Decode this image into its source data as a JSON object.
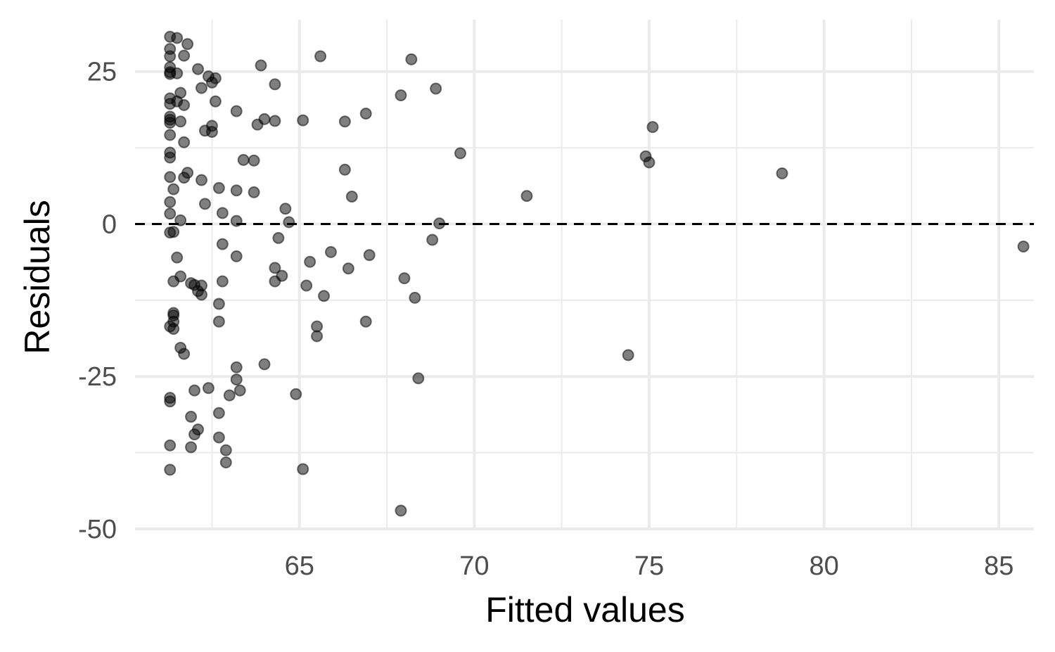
{
  "chart_data": {
    "type": "scatter",
    "title": "",
    "xlabel": "Fitted values",
    "ylabel": "Residuals",
    "xlim": [
      60.3,
      86.0
    ],
    "ylim": [
      -50.0,
      33.5
    ],
    "x_ticks": [
      65,
      70,
      75,
      80,
      85
    ],
    "x_tick_labels": [
      "65",
      "70",
      "75",
      "80",
      "85"
    ],
    "y_ticks": [
      -50,
      -25,
      0,
      25
    ],
    "y_tick_labels": [
      "-50",
      "-25",
      "0",
      "25"
    ],
    "grid": true,
    "reference_line": {
      "y": 0,
      "style": "dashed",
      "color": "#000000"
    },
    "point_color": "#000000",
    "point_opacity": 0.5,
    "points": [
      [
        61.3,
        30.7
      ],
      [
        61.5,
        30.5
      ],
      [
        61.8,
        29.5
      ],
      [
        61.3,
        28.7
      ],
      [
        61.3,
        27.5
      ],
      [
        61.7,
        27.6
      ],
      [
        61.3,
        25.7
      ],
      [
        61.3,
        24.9
      ],
      [
        61.3,
        24.6
      ],
      [
        61.5,
        24.7
      ],
      [
        62.1,
        25.4
      ],
      [
        62.4,
        24.2
      ],
      [
        62.6,
        23.9
      ],
      [
        62.5,
        23.2
      ],
      [
        61.6,
        21.5
      ],
      [
        62.2,
        22.3
      ],
      [
        61.3,
        20.6
      ],
      [
        61.5,
        20.1
      ],
      [
        61.3,
        19.7
      ],
      [
        61.7,
        19.5
      ],
      [
        62.6,
        20.1
      ],
      [
        61.3,
        17.6
      ],
      [
        61.3,
        17.1
      ],
      [
        61.3,
        16.6
      ],
      [
        61.6,
        16.8
      ],
      [
        62.5,
        16.1
      ],
      [
        62.3,
        15.3
      ],
      [
        62.5,
        15.1
      ],
      [
        61.3,
        14.6
      ],
      [
        61.7,
        13.4
      ],
      [
        61.3,
        11.7
      ],
      [
        61.3,
        10.9
      ],
      [
        61.3,
        7.7
      ],
      [
        61.7,
        7.6
      ],
      [
        61.8,
        8.4
      ],
      [
        62.2,
        7.2
      ],
      [
        61.4,
        5.7
      ],
      [
        62.7,
        5.9
      ],
      [
        61.3,
        3.6
      ],
      [
        62.3,
        3.3
      ],
      [
        61.3,
        1.7
      ],
      [
        62.8,
        1.8
      ],
      [
        61.6,
        0.6
      ],
      [
        61.4,
        -1.3
      ],
      [
        61.3,
        -1.4
      ],
      [
        61.5,
        -5.5
      ],
      [
        62.8,
        -3.3
      ],
      [
        61.4,
        -9.4
      ],
      [
        61.6,
        -8.6
      ],
      [
        61.9,
        -9.7
      ],
      [
        62.0,
        -10.0
      ],
      [
        62.1,
        -11.0
      ],
      [
        62.2,
        -10.1
      ],
      [
        62.2,
        -11.6
      ],
      [
        62.8,
        -9.4
      ],
      [
        62.7,
        -13.1
      ],
      [
        61.4,
        -14.6
      ],
      [
        61.4,
        -15.0
      ],
      [
        61.4,
        -16.0
      ],
      [
        61.3,
        -16.8
      ],
      [
        61.4,
        -17.2
      ],
      [
        62.7,
        -16.0
      ],
      [
        61.6,
        -20.3
      ],
      [
        61.7,
        -21.3
      ],
      [
        62.0,
        -27.3
      ],
      [
        61.3,
        -28.5
      ],
      [
        61.3,
        -29.1
      ],
      [
        62.4,
        -26.9
      ],
      [
        62.7,
        -31.0
      ],
      [
        61.9,
        -31.6
      ],
      [
        62.1,
        -33.7
      ],
      [
        62.0,
        -34.5
      ],
      [
        62.7,
        -35.0
      ],
      [
        61.3,
        -36.3
      ],
      [
        61.9,
        -36.6
      ],
      [
        62.9,
        -37.1
      ],
      [
        62.9,
        -39.1
      ],
      [
        61.3,
        -40.3
      ],
      [
        63.2,
        18.5
      ],
      [
        63.4,
        10.5
      ],
      [
        63.7,
        10.4
      ],
      [
        63.2,
        5.5
      ],
      [
        63.7,
        5.2
      ],
      [
        63.2,
        0.5
      ],
      [
        63.2,
        -5.3
      ],
      [
        63.2,
        -23.5
      ],
      [
        63.2,
        -25.5
      ],
      [
        63.3,
        -27.3
      ],
      [
        63.0,
        -28.1
      ],
      [
        63.9,
        26.0
      ],
      [
        64.3,
        22.9
      ],
      [
        64.0,
        17.2
      ],
      [
        63.8,
        16.3
      ],
      [
        64.3,
        16.9
      ],
      [
        64.6,
        2.5
      ],
      [
        64.7,
        0.3
      ],
      [
        64.4,
        -2.3
      ],
      [
        64.3,
        -7.2
      ],
      [
        64.5,
        -8.5
      ],
      [
        64.3,
        -9.4
      ],
      [
        64.0,
        -23.0
      ],
      [
        64.9,
        -27.9
      ],
      [
        65.6,
        27.5
      ],
      [
        65.1,
        17.0
      ],
      [
        65.3,
        -6.2
      ],
      [
        65.9,
        -4.6
      ],
      [
        65.2,
        -10.1
      ],
      [
        65.7,
        -11.8
      ],
      [
        65.5,
        -16.8
      ],
      [
        65.5,
        -18.4
      ],
      [
        65.1,
        -40.2
      ],
      [
        66.3,
        16.8
      ],
      [
        66.9,
        18.1
      ],
      [
        66.3,
        8.9
      ],
      [
        66.5,
        4.5
      ],
      [
        66.4,
        -7.3
      ],
      [
        67.0,
        -5.1
      ],
      [
        66.9,
        -16.0
      ],
      [
        68.2,
        27.0
      ],
      [
        67.9,
        21.1
      ],
      [
        68.9,
        22.2
      ],
      [
        68.0,
        -8.9
      ],
      [
        68.3,
        -12.1
      ],
      [
        68.4,
        -25.3
      ],
      [
        67.9,
        -47.0
      ],
      [
        69.6,
        11.6
      ],
      [
        69.0,
        0.1
      ],
      [
        68.8,
        -2.6
      ],
      [
        71.5,
        4.6
      ],
      [
        74.9,
        11.1
      ],
      [
        75.0,
        10.1
      ],
      [
        75.1,
        15.9
      ],
      [
        74.4,
        -21.5
      ],
      [
        78.8,
        8.3
      ],
      [
        85.7,
        -3.7
      ]
    ]
  }
}
